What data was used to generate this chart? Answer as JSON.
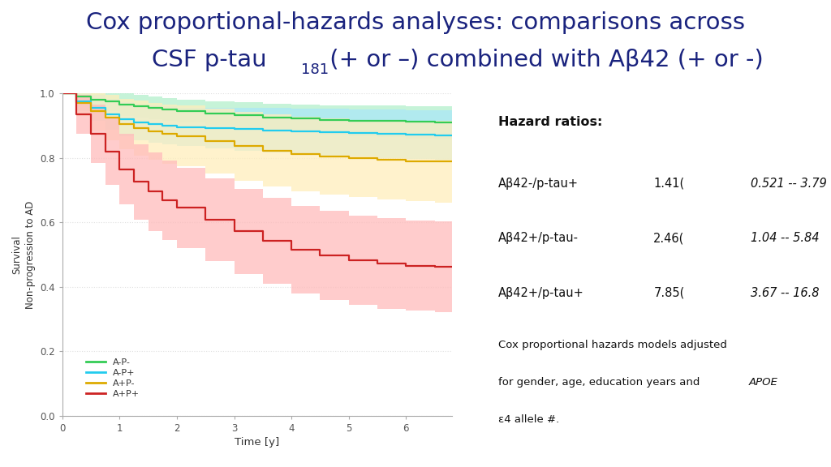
{
  "title_line1": "Cox proportional-hazards analyses: comparisons across",
  "title_color": "#1a237e",
  "title_fontsize": 21,
  "background_color": "#ffffff",
  "xlabel": "Time [y]",
  "ylabel": "Survival\nNon-progression to AD",
  "ylim": [
    0.0,
    1.0
  ],
  "xlim": [
    0,
    6.8
  ],
  "yticks": [
    0.0,
    0.2,
    0.4,
    0.6,
    0.8,
    1.0
  ],
  "xticks": [
    0,
    1,
    2,
    3,
    4,
    5,
    6
  ],
  "curves": {
    "A-P-": {
      "color": "#33cc55",
      "ci_color": "#b3f0cc",
      "times": [
        0,
        0.25,
        0.5,
        0.75,
        1.0,
        1.25,
        1.5,
        1.75,
        2.0,
        2.5,
        3.0,
        3.5,
        4.0,
        4.5,
        5.0,
        5.5,
        6.0,
        6.5,
        6.8
      ],
      "survival": [
        1.0,
        0.99,
        0.98,
        0.975,
        0.965,
        0.96,
        0.955,
        0.95,
        0.945,
        0.938,
        0.932,
        0.926,
        0.922,
        0.918,
        0.916,
        0.914,
        0.912,
        0.91,
        0.91
      ],
      "lower": [
        1.0,
        0.97,
        0.95,
        0.945,
        0.93,
        0.925,
        0.92,
        0.915,
        0.91,
        0.9,
        0.892,
        0.884,
        0.878,
        0.872,
        0.868,
        0.864,
        0.86,
        0.858,
        0.858
      ],
      "upper": [
        1.0,
        1.0,
        1.0,
        1.0,
        1.0,
        0.995,
        0.99,
        0.985,
        0.98,
        0.975,
        0.972,
        0.968,
        0.966,
        0.964,
        0.963,
        0.962,
        0.961,
        0.96,
        0.96
      ]
    },
    "A-P+": {
      "color": "#22ccee",
      "ci_color": "#aae8f8",
      "times": [
        0,
        0.25,
        0.5,
        0.75,
        1.0,
        1.25,
        1.5,
        1.75,
        2.0,
        2.5,
        3.0,
        3.5,
        4.0,
        4.5,
        5.0,
        5.5,
        6.0,
        6.5,
        6.8
      ],
      "survival": [
        1.0,
        0.975,
        0.955,
        0.935,
        0.92,
        0.91,
        0.905,
        0.9,
        0.896,
        0.893,
        0.889,
        0.886,
        0.883,
        0.88,
        0.877,
        0.874,
        0.872,
        0.87,
        0.87
      ],
      "lower": [
        1.0,
        0.945,
        0.915,
        0.888,
        0.868,
        0.854,
        0.847,
        0.841,
        0.836,
        0.83,
        0.823,
        0.818,
        0.813,
        0.808,
        0.804,
        0.799,
        0.796,
        0.793,
        0.793
      ],
      "upper": [
        1.0,
        1.0,
        0.995,
        0.982,
        0.972,
        0.966,
        0.963,
        0.959,
        0.956,
        0.956,
        0.955,
        0.954,
        0.953,
        0.952,
        0.95,
        0.949,
        0.948,
        0.947,
        0.947
      ]
    },
    "A+P-": {
      "color": "#ddaa00",
      "ci_color": "#ffeebb",
      "times": [
        0,
        0.25,
        0.5,
        0.75,
        1.0,
        1.25,
        1.5,
        1.75,
        2.0,
        2.5,
        3.0,
        3.5,
        4.0,
        4.5,
        5.0,
        5.5,
        6.0,
        6.5,
        6.8
      ],
      "survival": [
        1.0,
        0.97,
        0.945,
        0.925,
        0.905,
        0.892,
        0.882,
        0.874,
        0.868,
        0.852,
        0.836,
        0.822,
        0.812,
        0.804,
        0.798,
        0.793,
        0.79,
        0.788,
        0.788
      ],
      "lower": [
        1.0,
        0.93,
        0.886,
        0.855,
        0.826,
        0.806,
        0.793,
        0.782,
        0.773,
        0.751,
        0.729,
        0.71,
        0.696,
        0.686,
        0.678,
        0.671,
        0.666,
        0.662,
        0.662
      ],
      "upper": [
        1.0,
        1.0,
        1.0,
        0.995,
        0.984,
        0.978,
        0.971,
        0.966,
        0.963,
        0.953,
        0.943,
        0.934,
        0.928,
        0.922,
        0.918,
        0.915,
        0.914,
        0.914,
        0.914
      ]
    },
    "A+P+": {
      "color": "#cc2222",
      "ci_color": "#ffbbbb",
      "times": [
        0,
        0.25,
        0.5,
        0.75,
        1.0,
        1.25,
        1.5,
        1.75,
        2.0,
        2.5,
        3.0,
        3.5,
        4.0,
        4.5,
        5.0,
        5.5,
        6.0,
        6.5,
        6.8
      ],
      "survival": [
        1.0,
        0.935,
        0.875,
        0.82,
        0.765,
        0.725,
        0.695,
        0.668,
        0.645,
        0.608,
        0.572,
        0.542,
        0.516,
        0.498,
        0.482,
        0.472,
        0.465,
        0.462,
        0.462
      ],
      "lower": [
        1.0,
        0.875,
        0.785,
        0.715,
        0.655,
        0.608,
        0.574,
        0.545,
        0.52,
        0.479,
        0.44,
        0.408,
        0.38,
        0.36,
        0.343,
        0.332,
        0.325,
        0.32,
        0.32
      ],
      "upper": [
        1.0,
        0.995,
        0.965,
        0.925,
        0.875,
        0.842,
        0.816,
        0.791,
        0.77,
        0.737,
        0.704,
        0.676,
        0.652,
        0.636,
        0.621,
        0.612,
        0.605,
        0.604,
        0.604
      ]
    }
  },
  "hazard_title": "Hazard ratios:",
  "hazard_rows": [
    {
      "label": "Aβ42-/p-tau+",
      "hr": "1.41(",
      "ci": "0.521 -- 3.79",
      "suffix": ")"
    },
    {
      "label": "Aβ42+/p-tau-",
      "hr": "2.46(",
      "ci": "1.04 -- 5.84",
      "suffix": ")"
    },
    {
      "label": "Aβ42+/p-tau+",
      "hr": "7.85(",
      "ci": "3.67 -- 16.8",
      "suffix": ")"
    }
  ],
  "legend_labels": [
    "A-P-",
    "A-P+",
    "A+P-",
    "A+P+"
  ],
  "legend_colors": [
    "#33cc55",
    "#22ccee",
    "#ddaa00",
    "#cc2222"
  ]
}
